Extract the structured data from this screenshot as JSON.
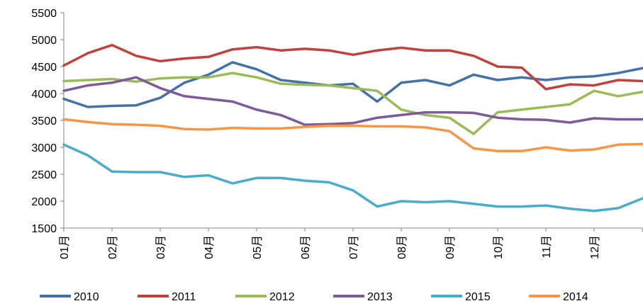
{
  "chart_data": {
    "type": "line",
    "categories": [
      "01月",
      "02月",
      "03月",
      "04月",
      "05月",
      "06月",
      "07月",
      "08月",
      "09月",
      "10月",
      "11月",
      "12月"
    ],
    "x": [
      0,
      0.5,
      1,
      1.5,
      2,
      2.5,
      3,
      3.5,
      4,
      4.5,
      5,
      5.5,
      6,
      6.5,
      7,
      7.5,
      8,
      8.5,
      9,
      9.5,
      10,
      10.5,
      11,
      11.5,
      12
    ],
    "ylim": [
      1500,
      5500
    ],
    "yticks": [
      "1500",
      "2000",
      "2500",
      "3000",
      "3500",
      "4000",
      "4500",
      "5000",
      "5500"
    ],
    "ytick_values": [
      1500,
      2000,
      2500,
      3000,
      3500,
      4000,
      4500,
      5000,
      5500
    ],
    "grid": false,
    "legend_position": "bottom",
    "series": [
      {
        "name": "2010",
        "color": "#4472A8",
        "values": [
          3900,
          3750,
          3770,
          3780,
          3920,
          4200,
          4350,
          4580,
          4450,
          4250,
          4200,
          4150,
          4180,
          3850,
          4200,
          4250,
          4150,
          4350,
          4250,
          4300,
          4250,
          4300,
          4320,
          4380,
          4470
        ]
      },
      {
        "name": "2011",
        "color": "#C0413D",
        "values": [
          4520,
          4750,
          4900,
          4700,
          4600,
          4650,
          4680,
          4820,
          4860,
          4800,
          4830,
          4800,
          4720,
          4800,
          4850,
          4800,
          4800,
          4700,
          4500,
          4480,
          4080,
          4170,
          4150,
          4250,
          4230
        ]
      },
      {
        "name": "2012",
        "color": "#9BBB59",
        "values": [
          4230,
          4250,
          4270,
          4220,
          4280,
          4300,
          4300,
          4380,
          4300,
          4180,
          4160,
          4150,
          4100,
          4050,
          3700,
          3600,
          3550,
          3250,
          3650,
          3700,
          3750,
          3800,
          4050,
          3950,
          4030
        ]
      },
      {
        "name": "2013",
        "color": "#7E5A9B",
        "values": [
          4050,
          4150,
          4200,
          4300,
          4100,
          3950,
          3900,
          3850,
          3700,
          3600,
          3420,
          3430,
          3450,
          3550,
          3600,
          3650,
          3650,
          3640,
          3550,
          3520,
          3510,
          3460,
          3540,
          3520,
          3520
        ]
      },
      {
        "name": "2015",
        "color": "#4AACC6",
        "values": [
          3050,
          2850,
          2550,
          2540,
          2540,
          2450,
          2480,
          2330,
          2430,
          2430,
          2380,
          2350,
          2200,
          1900,
          2000,
          1980,
          2000,
          1950,
          1900,
          1900,
          1920,
          1860,
          1820,
          1870,
          2050
        ]
      },
      {
        "name": "2014",
        "color": "#F79646",
        "values": [
          3520,
          3470,
          3430,
          3420,
          3400,
          3340,
          3330,
          3360,
          3350,
          3350,
          3380,
          3400,
          3400,
          3390,
          3390,
          3370,
          3300,
          2980,
          2930,
          2930,
          3000,
          2940,
          2960,
          3050,
          3060
        ]
      }
    ]
  }
}
